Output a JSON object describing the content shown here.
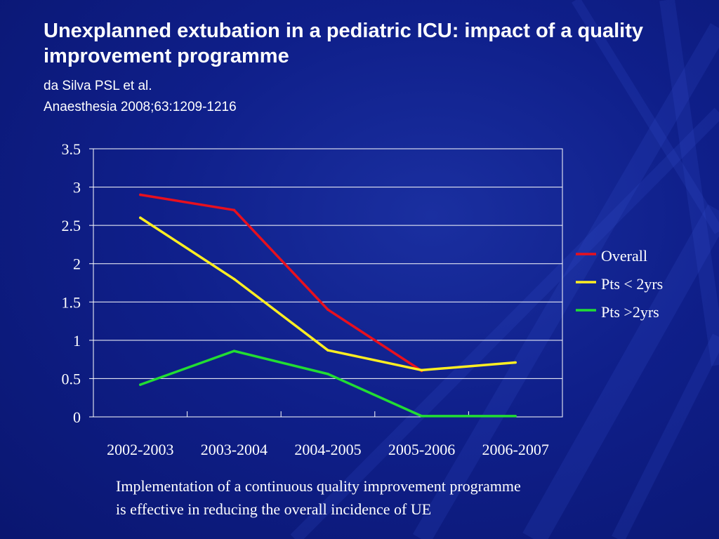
{
  "slide": {
    "title": "Unexplanned extubation in a pediatric ICU: impact of a quality improvement programme",
    "authors": "da Silva PSL et al.",
    "citation": "Anaesthesia 2008;63:1209-1216",
    "caption_line1": "Implementation of a continuous quality improvement programme",
    "caption_line2": "is effective in reducing the overall incidence of UE",
    "background_color": "#0f1f8a"
  },
  "chart_data": {
    "type": "line",
    "categories": [
      "2002-2003",
      "2003-2004",
      "2004-2005",
      "2005-2006",
      "2006-2007"
    ],
    "ylim": [
      0,
      3.5
    ],
    "yticks": [
      "0",
      "0.5",
      "1",
      "1.5",
      "2",
      "2.5",
      "3",
      "3.5"
    ],
    "grid": true,
    "legend_position": "right",
    "series": [
      {
        "name": "Overall",
        "color": "#e8101e",
        "values": [
          2.9,
          2.7,
          1.4,
          0.6,
          null
        ]
      },
      {
        "name": "Pts < 2yrs",
        "color": "#ffee22",
        "values": [
          2.6,
          1.8,
          0.87,
          0.61,
          0.71
        ]
      },
      {
        "name": "Pts >2yrs",
        "color": "#22dd33",
        "values": [
          0.42,
          0.86,
          0.56,
          0.01,
          0.01
        ]
      }
    ]
  }
}
